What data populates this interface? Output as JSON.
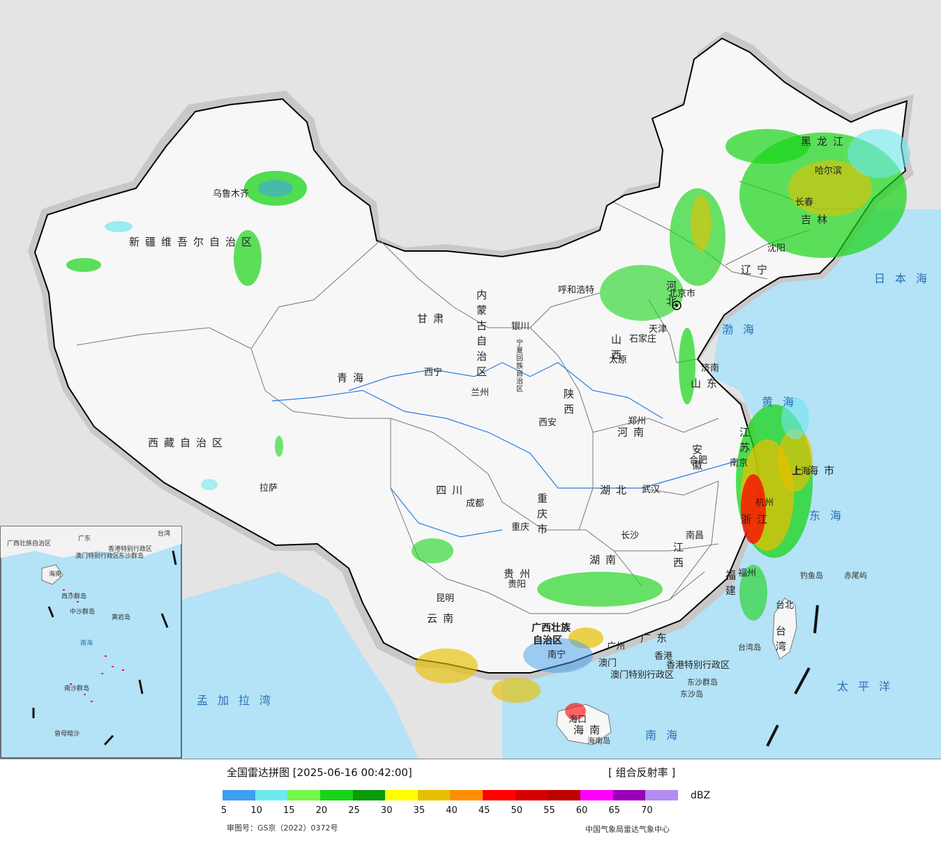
{
  "map": {
    "provinces": [
      {
        "name": "新疆维吾尔自治区"
      },
      {
        "name": "西藏自治区"
      },
      {
        "name": "青海"
      },
      {
        "name": "甘肃"
      },
      {
        "name": "内蒙古自治区"
      },
      {
        "name": "黑龙江"
      },
      {
        "name": "吉林"
      },
      {
        "name": "辽宁"
      },
      {
        "name": "河北"
      },
      {
        "name": "山西"
      },
      {
        "name": "山东"
      },
      {
        "name": "河南"
      },
      {
        "name": "陕西"
      },
      {
        "name": "四川"
      },
      {
        "name": "重庆市"
      },
      {
        "name": "湖北"
      },
      {
        "name": "安徽"
      },
      {
        "name": "江苏"
      },
      {
        "name": "上海市"
      },
      {
        "name": "浙江"
      },
      {
        "name": "江西"
      },
      {
        "name": "湖南"
      },
      {
        "name": "贵州"
      },
      {
        "name": "云南"
      },
      {
        "name": "广西壮族自治区"
      },
      {
        "name": "广东"
      },
      {
        "name": "福建"
      },
      {
        "name": "台湾"
      },
      {
        "name": "海南"
      },
      {
        "name": "宁夏回族自治区"
      },
      {
        "name": "香港特别行政区"
      },
      {
        "name": "澳门特别行政区"
      }
    ],
    "cities": [
      {
        "name": "乌鲁木齐"
      },
      {
        "name": "拉萨"
      },
      {
        "name": "西宁"
      },
      {
        "name": "兰州"
      },
      {
        "name": "银川"
      },
      {
        "name": "呼和浩特"
      },
      {
        "name": "哈尔滨"
      },
      {
        "name": "长春"
      },
      {
        "name": "沈阳"
      },
      {
        "name": "北京市"
      },
      {
        "name": "天津"
      },
      {
        "name": "石家庄"
      },
      {
        "name": "太原"
      },
      {
        "name": "济南"
      },
      {
        "name": "郑州"
      },
      {
        "name": "西安"
      },
      {
        "name": "成都"
      },
      {
        "name": "重庆"
      },
      {
        "name": "武汉"
      },
      {
        "name": "合肥"
      },
      {
        "name": "南京"
      },
      {
        "name": "上海"
      },
      {
        "name": "杭州"
      },
      {
        "name": "南昌"
      },
      {
        "name": "长沙"
      },
      {
        "name": "贵阳"
      },
      {
        "name": "昆明"
      },
      {
        "name": "南宁"
      },
      {
        "name": "广州"
      },
      {
        "name": "香港"
      },
      {
        "name": "澳门"
      },
      {
        "name": "福州"
      },
      {
        "name": "台北"
      },
      {
        "name": "海口"
      }
    ],
    "seas": [
      {
        "name": "渤海"
      },
      {
        "name": "黄海"
      },
      {
        "name": "东海"
      },
      {
        "name": "南海"
      },
      {
        "name": "日本海"
      },
      {
        "name": "太平洋"
      },
      {
        "name": "孟加拉湾"
      }
    ],
    "islands": [
      {
        "name": "钓鱼岛"
      },
      {
        "name": "赤尾屿"
      },
      {
        "name": "台湾岛"
      },
      {
        "name": "东沙群岛"
      },
      {
        "name": "东沙岛"
      },
      {
        "name": "海南岛"
      }
    ],
    "inset": {
      "labels": [
        "广西壮族自治区",
        "广东",
        "台湾",
        "香港特别行政区",
        "澳门特别行政区",
        "东沙群岛",
        "海南",
        "西沙群岛",
        "中沙群岛",
        "黄岩岛",
        "南海",
        "南沙群岛",
        "曾母暗沙"
      ]
    }
  },
  "legend": {
    "title": "全国雷达拼图 [2025-06-16 00:42:00]",
    "product": "[ 组合反射率 ]",
    "unit": "dBZ",
    "colors": [
      "#3f9ff0",
      "#6ee8ec",
      "#76f54a",
      "#18d418",
      "#0a9a0a",
      "#ffff00",
      "#e6c000",
      "#ff8f00",
      "#ff0000",
      "#d60000",
      "#c00000",
      "#ff00ff",
      "#9a00b8",
      "#b48cf0"
    ],
    "ticks": [
      "5",
      "10",
      "15",
      "20",
      "25",
      "30",
      "35",
      "40",
      "45",
      "50",
      "55",
      "60",
      "65",
      "70"
    ],
    "approval": "审图号：GS京（2022）0372号",
    "agency": "中国气象局雷达气象中心"
  }
}
